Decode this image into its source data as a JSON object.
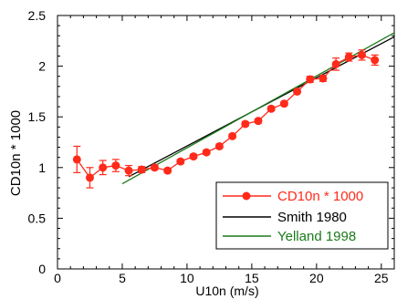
{
  "chart_data": {
    "type": "scatter",
    "title": "",
    "xlabel": "U10n (m/s)",
    "ylabel": "CD10n * 1000",
    "xlim": [
      0,
      26
    ],
    "ylim": [
      0,
      2.5
    ],
    "xticks": [
      0,
      5,
      10,
      15,
      20,
      25
    ],
    "xtick_labels": [
      "0",
      "5",
      "10",
      "15",
      "20",
      "25"
    ],
    "yticks": [
      0,
      0.5,
      1,
      1.5,
      2,
      2.5
    ],
    "ytick_labels": [
      "0",
      "0.5",
      "1",
      "1.5",
      "2",
      "2.5"
    ],
    "grid": false,
    "legend_position": "bottom-right",
    "series": [
      {
        "name": "CD10n * 1000",
        "kind": "points-with-error-bars",
        "color": "#ff2a1a",
        "x": [
          1.5,
          2.5,
          3.5,
          4.5,
          5.5,
          6.5,
          7.5,
          8.5,
          9.5,
          10.5,
          11.5,
          12.5,
          13.5,
          14.5,
          15.5,
          16.5,
          17.5,
          18.5,
          19.5,
          20.5,
          21.5,
          22.5,
          23.5,
          24.5
        ],
        "y": [
          1.08,
          0.9,
          1.0,
          1.02,
          0.97,
          0.98,
          1.0,
          0.97,
          1.06,
          1.11,
          1.15,
          1.21,
          1.31,
          1.43,
          1.46,
          1.58,
          1.63,
          1.75,
          1.87,
          1.88,
          2.02,
          2.09,
          2.11,
          2.06
        ],
        "err": [
          0.13,
          0.1,
          0.07,
          0.06,
          0.05,
          0.03,
          0.02,
          0.02,
          0.02,
          0.02,
          0.02,
          0.02,
          0.02,
          0.02,
          0.02,
          0.02,
          0.02,
          0.02,
          0.03,
          0.03,
          0.06,
          0.04,
          0.05,
          0.05
        ]
      },
      {
        "name": "Smith 1980",
        "kind": "line",
        "color": "#000000",
        "x": [
          5.5,
          26
        ],
        "y": [
          0.91,
          2.29
        ]
      },
      {
        "name": "Yelland 1998",
        "kind": "line",
        "color": "#1a7a1a",
        "x": [
          5,
          26
        ],
        "y": [
          0.84,
          2.33
        ]
      }
    ]
  }
}
